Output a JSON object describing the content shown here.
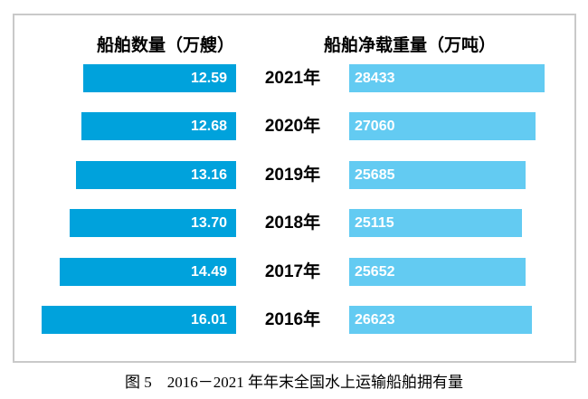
{
  "headers": {
    "left": "船舶数量（万艘）",
    "right": "船舶净载重量（万吨）"
  },
  "caption": "图 5　2016－2021 年年末全国水上运输船舶拥有量",
  "colors": {
    "left_bar": "#00a2dc",
    "right_bar": "#63cbf2",
    "frame_border": "#c9c9c9",
    "bar_label_text": "#ffffff",
    "year_text": "#000000"
  },
  "chart_data": {
    "type": "bar",
    "orientation": "horizontal-diverging",
    "title": "",
    "caption": "图 5　2016－2021 年年末全国水上运输船舶拥有量",
    "categories": [
      "2021年",
      "2020年",
      "2019年",
      "2018年",
      "2017年",
      "2016年"
    ],
    "series": [
      {
        "name": "船舶数量（万艘）",
        "side": "left",
        "color": "#00a2dc",
        "values": [
          12.59,
          12.68,
          13.16,
          13.7,
          14.49,
          16.01
        ],
        "value_labels": [
          "12.59",
          "12.68",
          "13.16",
          "13.70",
          "14.49",
          "16.01"
        ]
      },
      {
        "name": "船舶净载重量（万吨）",
        "side": "right",
        "color": "#63cbf2",
        "values": [
          28433,
          27060,
          25685,
          25115,
          25652,
          26623
        ],
        "value_labels": [
          "28433",
          "27060",
          "25685",
          "25115",
          "25652",
          "26623"
        ]
      }
    ],
    "axis_ranges": {
      "left_from_zero": true,
      "right_from_zero": true
    },
    "grid": false,
    "legend_position": "column-headers"
  }
}
